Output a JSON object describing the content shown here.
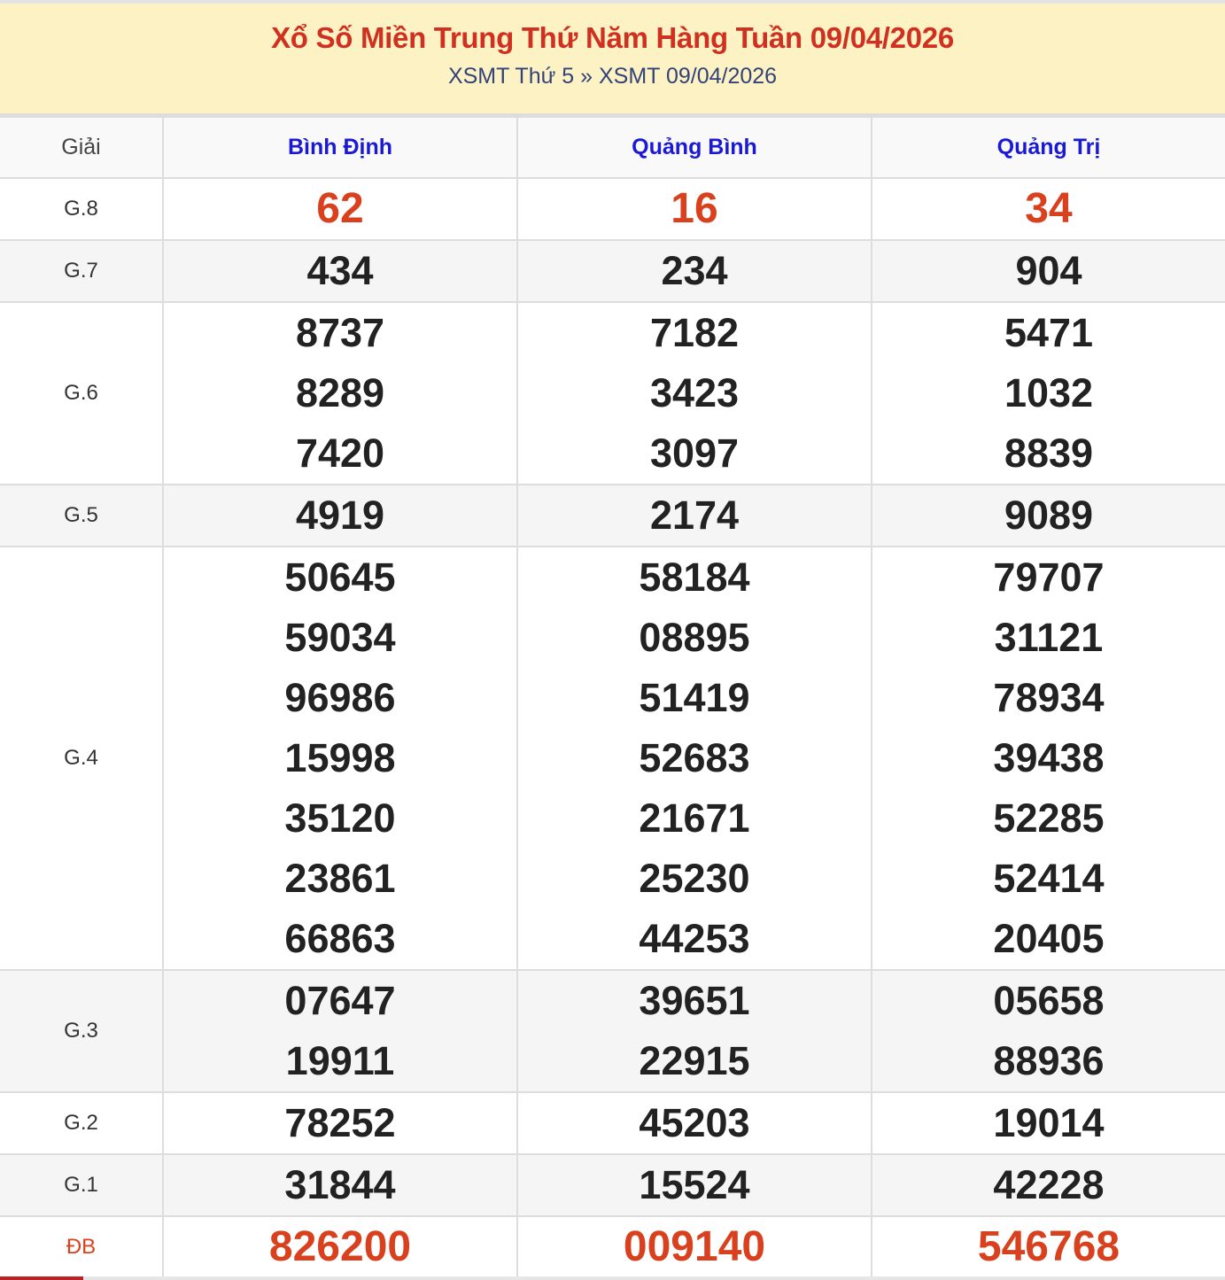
{
  "header": {
    "title": "Xổ Số Miền Trung Thứ Năm Hàng Tuần 09/04/2026",
    "breadcrumb": [
      "XSMT Thứ 5",
      "XSMT 09/04/2026"
    ],
    "separator": "»"
  },
  "table": {
    "columns": [
      "Giải",
      "Bình Định",
      "Quảng Bình",
      "Quảng Trị"
    ],
    "rows": [
      {
        "label": "G.8",
        "values": [
          [
            "62"
          ],
          [
            "16"
          ],
          [
            "34"
          ]
        ],
        "red": true
      },
      {
        "label": "G.7",
        "values": [
          [
            "434"
          ],
          [
            "234"
          ],
          [
            "904"
          ]
        ]
      },
      {
        "label": "G.6",
        "values": [
          [
            "8737",
            "8289",
            "7420"
          ],
          [
            "7182",
            "3423",
            "3097"
          ],
          [
            "5471",
            "1032",
            "8839"
          ]
        ]
      },
      {
        "label": "G.5",
        "values": [
          [
            "4919"
          ],
          [
            "2174"
          ],
          [
            "9089"
          ]
        ]
      },
      {
        "label": "G.4",
        "values": [
          [
            "50645",
            "59034",
            "96986",
            "15998",
            "35120",
            "23861",
            "66863"
          ],
          [
            "58184",
            "08895",
            "51419",
            "52683",
            "21671",
            "25230",
            "44253"
          ],
          [
            "79707",
            "31121",
            "78934",
            "39438",
            "52285",
            "52414",
            "20405"
          ]
        ]
      },
      {
        "label": "G.3",
        "values": [
          [
            "07647",
            "19911"
          ],
          [
            "39651",
            "22915"
          ],
          [
            "05658",
            "88936"
          ]
        ]
      },
      {
        "label": "G.2",
        "values": [
          [
            "78252"
          ],
          [
            "45203"
          ],
          [
            "19014"
          ]
        ]
      },
      {
        "label": "G.1",
        "values": [
          [
            "31844"
          ],
          [
            "15524"
          ],
          [
            "42228"
          ]
        ]
      },
      {
        "label": "ĐB",
        "values": [
          [
            "826200"
          ],
          [
            "009140"
          ],
          [
            "546768"
          ]
        ],
        "red": true
      }
    ]
  },
  "colors": {
    "title": "#d0301f",
    "province": "#1a1ad6",
    "highlight": "#d9411e",
    "header_bg": "#fdf2c4"
  }
}
